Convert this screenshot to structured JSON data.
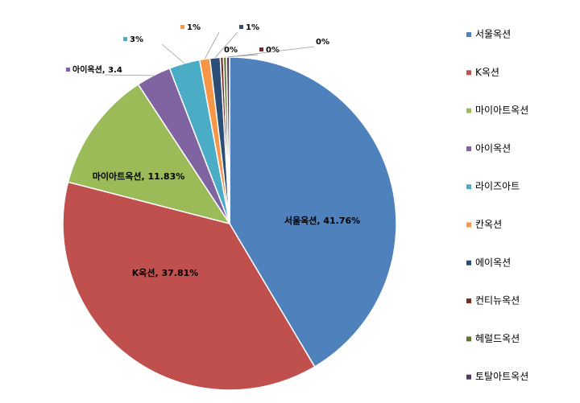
{
  "chart_data": {
    "type": "pie",
    "categories": [
      "서울옥션",
      "K옥션",
      "마이아트옥션",
      "아이옥션",
      "라이즈아트",
      "칸옥션",
      "에이옥션",
      "컨티뉴옥션",
      "헤럴드옥션",
      "토탈아트옥션"
    ],
    "values": [
      41.76,
      37.81,
      11.83,
      3.4,
      3,
      1,
      1,
      0.3,
      0.3,
      0.3
    ],
    "value_labels": [
      "서울옥션, 41.76%",
      "K옥션, 37.81%",
      "마이아트옥션, 11.83%",
      "아이옥션, 3.4",
      "3%",
      "1%",
      "1%",
      "0%",
      "0%",
      "0%"
    ],
    "colors": [
      "#4f81bd",
      "#c0504d",
      "#9bbb59",
      "#8064a2",
      "#4bacc6",
      "#f79646",
      "#2c4d75",
      "#772c2a",
      "#5f7530",
      "#4d3b62"
    ],
    "legend": "right"
  }
}
